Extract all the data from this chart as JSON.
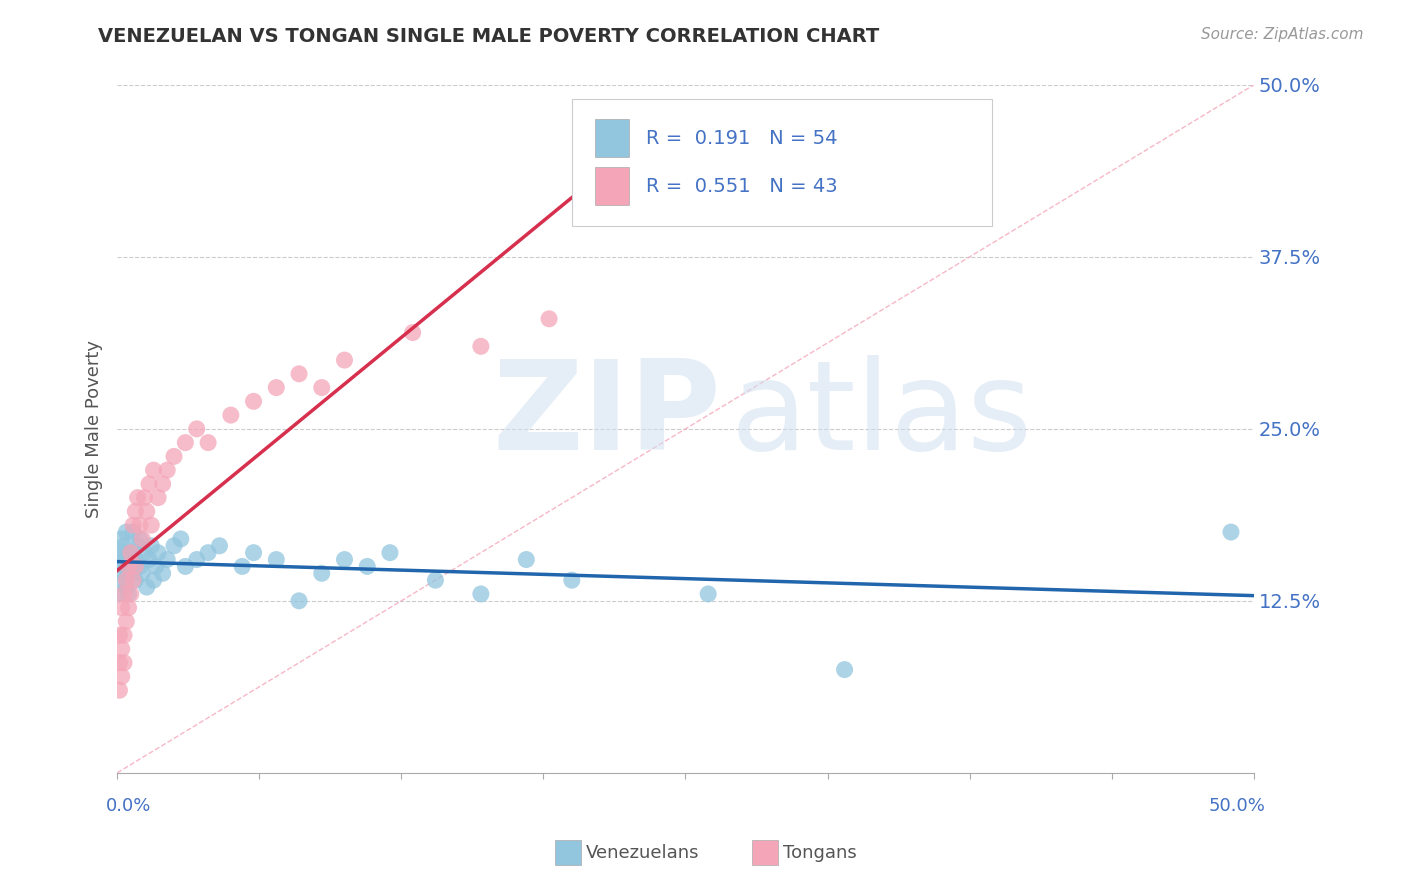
{
  "title": "VENEZUELAN VS TONGAN SINGLE MALE POVERTY CORRELATION CHART",
  "source": "Source: ZipAtlas.com",
  "ylabel": "Single Male Poverty",
  "xlim": [
    0.0,
    0.5
  ],
  "ylim": [
    0.0,
    0.5
  ],
  "yticks": [
    0.0,
    0.125,
    0.25,
    0.375,
    0.5
  ],
  "ytick_labels": [
    "",
    "12.5%",
    "25.0%",
    "37.5%",
    "50.0%"
  ],
  "blue_color": "#92c5de",
  "pink_color": "#f4a6b8",
  "blue_line_color": "#2166ac",
  "pink_line_color": "#d6304e",
  "R_blue": 0.191,
  "N_blue": 54,
  "R_pink": 0.551,
  "N_pink": 43,
  "watermark_zip": "ZIP",
  "watermark_atlas": "atlas",
  "bg_color": "#ffffff",
  "grid_color": "#cccccc",
  "venezuelan_x": [
    0.001,
    0.001,
    0.002,
    0.002,
    0.002,
    0.003,
    0.003,
    0.003,
    0.004,
    0.004,
    0.004,
    0.005,
    0.005,
    0.005,
    0.006,
    0.006,
    0.007,
    0.007,
    0.008,
    0.008,
    0.009,
    0.01,
    0.01,
    0.011,
    0.012,
    0.013,
    0.014,
    0.015,
    0.016,
    0.017,
    0.018,
    0.02,
    0.022,
    0.025,
    0.028,
    0.03,
    0.035,
    0.04,
    0.045,
    0.055,
    0.06,
    0.07,
    0.08,
    0.09,
    0.1,
    0.11,
    0.12,
    0.14,
    0.16,
    0.18,
    0.2,
    0.26,
    0.32,
    0.49
  ],
  "venezuelan_y": [
    0.155,
    0.13,
    0.16,
    0.145,
    0.17,
    0.14,
    0.15,
    0.165,
    0.135,
    0.155,
    0.175,
    0.145,
    0.16,
    0.13,
    0.15,
    0.145,
    0.16,
    0.175,
    0.14,
    0.155,
    0.165,
    0.15,
    0.17,
    0.145,
    0.16,
    0.135,
    0.155,
    0.165,
    0.14,
    0.15,
    0.16,
    0.145,
    0.155,
    0.165,
    0.17,
    0.15,
    0.155,
    0.16,
    0.165,
    0.15,
    0.16,
    0.155,
    0.125,
    0.145,
    0.155,
    0.15,
    0.16,
    0.14,
    0.13,
    0.155,
    0.14,
    0.13,
    0.075,
    0.175
  ],
  "tongan_x": [
    0.001,
    0.001,
    0.001,
    0.002,
    0.002,
    0.002,
    0.003,
    0.003,
    0.003,
    0.004,
    0.004,
    0.005,
    0.005,
    0.006,
    0.006,
    0.007,
    0.007,
    0.008,
    0.008,
    0.009,
    0.01,
    0.011,
    0.012,
    0.013,
    0.014,
    0.015,
    0.016,
    0.018,
    0.02,
    0.022,
    0.025,
    0.03,
    0.035,
    0.04,
    0.05,
    0.06,
    0.07,
    0.08,
    0.09,
    0.1,
    0.13,
    0.16,
    0.19
  ],
  "tongan_y": [
    0.1,
    0.08,
    0.06,
    0.12,
    0.09,
    0.07,
    0.13,
    0.1,
    0.08,
    0.14,
    0.11,
    0.15,
    0.12,
    0.16,
    0.13,
    0.18,
    0.14,
    0.19,
    0.15,
    0.2,
    0.18,
    0.17,
    0.2,
    0.19,
    0.21,
    0.18,
    0.22,
    0.2,
    0.21,
    0.22,
    0.23,
    0.24,
    0.25,
    0.24,
    0.26,
    0.27,
    0.28,
    0.29,
    0.28,
    0.3,
    0.32,
    0.31,
    0.33
  ]
}
